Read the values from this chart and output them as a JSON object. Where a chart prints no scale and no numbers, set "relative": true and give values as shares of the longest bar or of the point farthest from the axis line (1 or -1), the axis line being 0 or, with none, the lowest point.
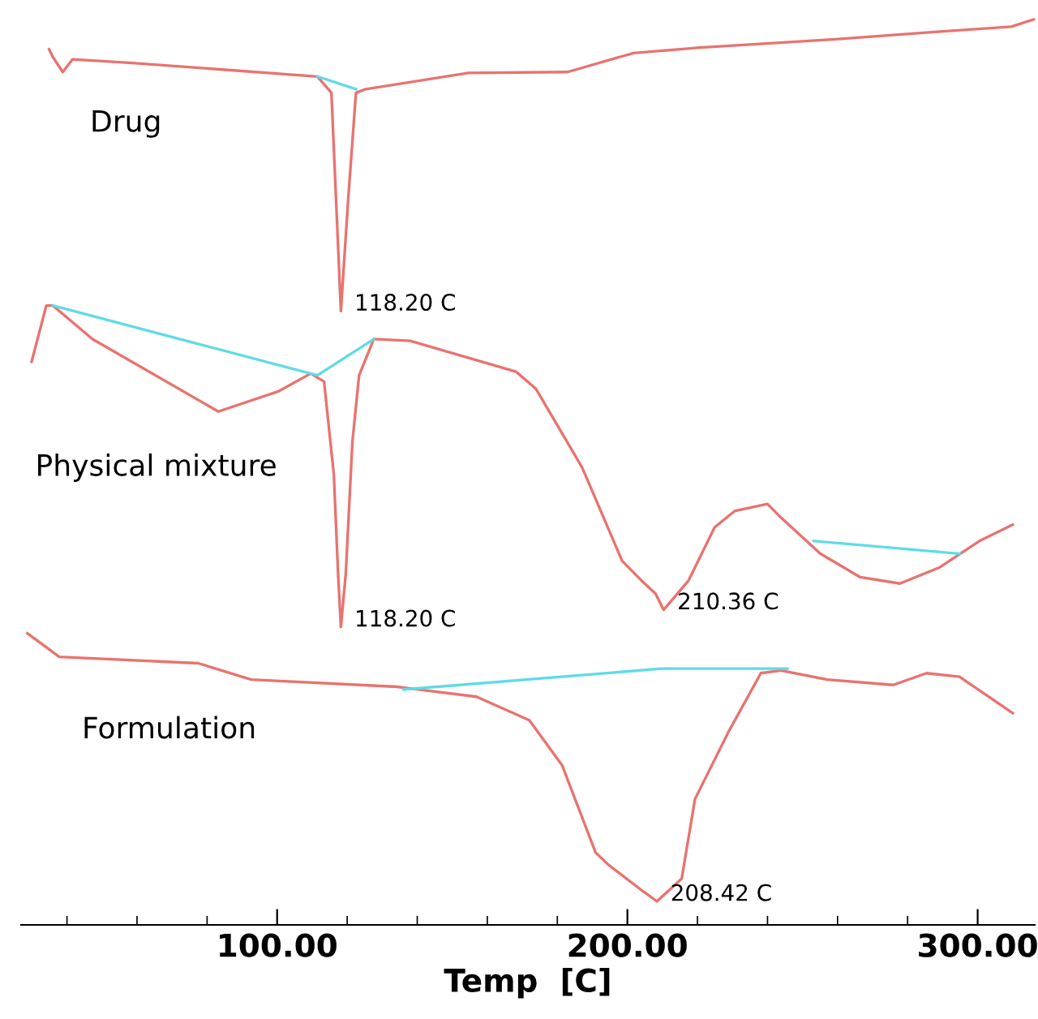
{
  "chart_data": {
    "type": "line",
    "relative": true,
    "xlabel": "Temp  [C]",
    "xlim": [
      26.9,
      316.3
    ],
    "xticks": [
      {
        "value": 40,
        "label": null
      },
      {
        "value": 60,
        "label": null
      },
      {
        "value": 80,
        "label": null
      },
      {
        "value": 100,
        "label": "100.00"
      },
      {
        "value": 120,
        "label": null
      },
      {
        "value": 140,
        "label": null
      },
      {
        "value": 160,
        "label": null
      },
      {
        "value": 180,
        "label": null
      },
      {
        "value": 200,
        "label": "200.00"
      },
      {
        "value": 220,
        "label": null
      },
      {
        "value": 240,
        "label": null
      },
      {
        "value": 260,
        "label": null
      },
      {
        "value": 280,
        "label": null
      },
      {
        "value": 300,
        "label": "300.00"
      }
    ],
    "tick_labels": "x",
    "grid": false,
    "legend": false,
    "marker": "none",
    "line_style": "solid",
    "series": [
      {
        "name": "Drug",
        "color": "#e8736f",
        "x": [
          34.9,
          35.9,
          38.8,
          41.6,
          58.6,
          111.5,
          115.5,
          118.2,
          120.3,
          122.5,
          125.3,
          154.6,
          182.9,
          201.8,
          220.8,
          258.6,
          286.9,
          309.6,
          316.0
        ],
        "values": [
          0.967,
          0.959,
          0.942,
          0.956,
          0.952,
          0.937,
          0.919,
          0.678,
          0.802,
          0.919,
          0.923,
          0.941,
          0.942,
          0.963,
          0.969,
          0.978,
          0.986,
          0.992,
          1.0
        ]
      },
      {
        "color": "#5fdbe6",
        "x": [
          111.5,
          122.5
        ],
        "values": [
          0.937,
          0.923
        ]
      },
      {
        "name": "Physical mixture",
        "color": "#e8736f",
        "x": [
          29.9,
          34.1,
          36.0,
          47.3,
          83.2,
          100.2,
          109.6,
          113.4,
          116.2,
          117.4,
          118.2,
          119.6,
          121.5,
          123.4,
          127.6,
          138.0,
          168.2,
          173.9,
          187.1,
          198.5,
          204.1,
          208.0,
          210.36,
          217.4,
          224.9,
          230.6,
          240.0,
          243.8,
          255.1,
          266.5,
          277.8,
          289.2,
          300.5,
          310.0
        ],
        "values": [
          0.622,
          0.684,
          0.684,
          0.647,
          0.567,
          0.589,
          0.609,
          0.6,
          0.497,
          0.388,
          0.329,
          0.388,
          0.534,
          0.607,
          0.647,
          0.645,
          0.611,
          0.592,
          0.505,
          0.402,
          0.38,
          0.366,
          0.348,
          0.38,
          0.439,
          0.457,
          0.465,
          0.45,
          0.41,
          0.384,
          0.377,
          0.395,
          0.424,
          0.442
        ]
      },
      {
        "color": "#5fdbe6",
        "x": [
          36.0,
          111.5,
          127.6
        ],
        "values": [
          0.684,
          0.607,
          0.647
        ]
      },
      {
        "color": "#5fdbe6",
        "x": [
          253.2,
          294.8
        ],
        "values": [
          0.424,
          0.41
        ]
      },
      {
        "name": "Formulation",
        "color": "#e8736f",
        "x": [
          28.7,
          37.8,
          77.5,
          92.6,
          134.2,
          156.9,
          172.0,
          181.4,
          190.9,
          194.7,
          204.5,
          208.42,
          215.5,
          219.3,
          228.7,
          238.1,
          243.8,
          257.0,
          275.9,
          285.4,
          294.8,
          304.3,
          310.0
        ],
        "values": [
          0.322,
          0.296,
          0.289,
          0.271,
          0.263,
          0.252,
          0.226,
          0.176,
          0.08,
          0.066,
          0.037,
          0.026,
          0.051,
          0.139,
          0.212,
          0.278,
          0.281,
          0.271,
          0.265,
          0.278,
          0.274,
          0.249,
          0.234
        ]
      },
      {
        "color": "#5fdbe6",
        "x": [
          136.1,
          209.7,
          245.7
        ],
        "values": [
          0.26,
          0.283,
          0.283
        ]
      }
    ],
    "annotations": [
      {
        "text": "118.20 C",
        "x": 118.2,
        "y": 0.678
      },
      {
        "text": "118.20 C",
        "x": 118.2,
        "y": 0.329
      },
      {
        "text": "210.36 C",
        "x": 210.36,
        "y": 0.348
      },
      {
        "text": "208.42 C",
        "x": 208.42,
        "y": 0.026
      }
    ]
  }
}
